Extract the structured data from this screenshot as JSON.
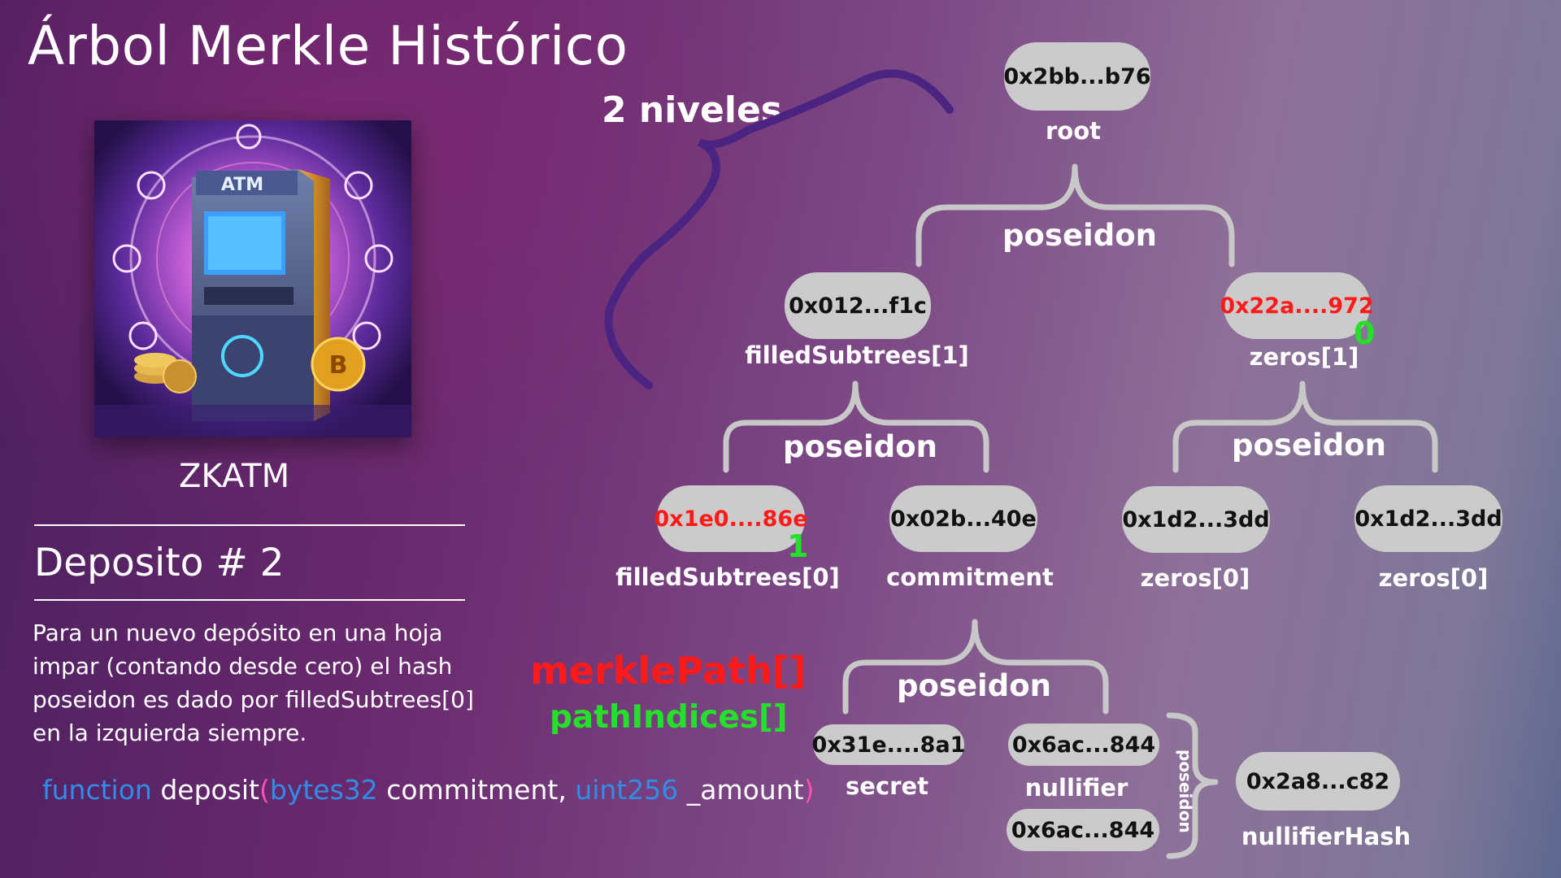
{
  "title": "Árbol Merkle Histórico",
  "levels_label": "2 niveles",
  "brand": "ZKATM",
  "illustration": {
    "atm_text": "ATM",
    "coin_letter": "B"
  },
  "deposit_title": "Deposito # 2",
  "description": "Para un nuevo depósito en una hoja impar (contando desde cero) el hash poseidon es dado por filledSubtrees[0] en la izquierda siempre.",
  "code": {
    "keyword": "function",
    "name": "deposit",
    "open": "(",
    "type1": "bytes32",
    "arg1": "commitment,",
    "type2": "uint256",
    "arg2": "_amount",
    "close": ")"
  },
  "legend": {
    "merkle_path": "merklePath[]",
    "path_indices": "pathIndices[]"
  },
  "colors": {
    "path": "#ff1a1a",
    "index": "#25e02a",
    "node_fill": "#cbcbcb",
    "bracket": "#c8c8c8",
    "big_brace": "#4a2480"
  },
  "tree": {
    "poseidon_label": "poseidon",
    "root": {
      "hash": "0x2bb...b76",
      "label": "root"
    },
    "level1": [
      {
        "hash": "0x012...f1c",
        "label": "filledSubtrees[1]"
      },
      {
        "hash": "0x22a....972",
        "label": "zeros[1]",
        "index": "0"
      }
    ],
    "level0": [
      {
        "hash": "0x1e0....86e",
        "label": "filledSubtrees[0]",
        "index": "1"
      },
      {
        "hash": "0x02b...40e",
        "label": "commitment"
      },
      {
        "hash": "0x1d2...3dd",
        "label": "zeros[0]"
      },
      {
        "hash": "0x1d2...3dd",
        "label": "zeros[0]"
      }
    ],
    "inputs": [
      {
        "hash": "0x31e....8a1",
        "label": "secret"
      },
      {
        "hash": "0x6ac...844",
        "label": "nullifier"
      },
      {
        "hash": "0x6ac...844",
        "label": ""
      }
    ],
    "nullifier_hash": {
      "hash": "0x2a8...c82",
      "label": "nullifierHash"
    }
  }
}
